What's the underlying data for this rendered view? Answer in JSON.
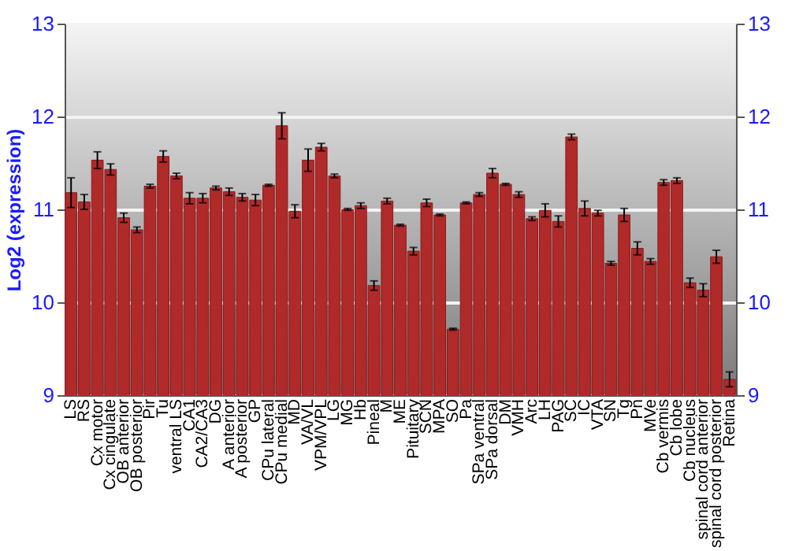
{
  "chart_data": {
    "type": "bar",
    "ylabel": "Log2 (expression)",
    "categories": [
      "LS",
      "RS",
      "Cx motor",
      "Cx cingulate",
      "OB anterior",
      "OB posterior",
      "Pir",
      "Tu",
      "ventral LS",
      "CA1",
      "CA2/CA3",
      "DG",
      "A anterior",
      "A posterior",
      "GP",
      "CPu lateral",
      "CPu medial",
      "MD",
      "VA/VL",
      "VPM/VPL",
      "LG",
      "MG",
      "Hb",
      "Pineal",
      "M",
      "ME",
      "Pituitary",
      "SCN",
      "MPA",
      "SO",
      "Pa",
      "SPa ventral",
      "SPa dorsal",
      "DM",
      "VMH",
      "Arc",
      "LH",
      "PAG",
      "SC",
      "IC",
      "VTA",
      "SN",
      "Tg",
      "Pn",
      "MVe",
      "Cb vermis",
      "Cb lobe",
      "Cb nucleus",
      "spinal cord anterior",
      "spinal cord posterior",
      "Retina"
    ],
    "series": [
      {
        "color": "#b02a2a",
        "values": [
          11.18,
          11.08,
          11.53,
          11.43,
          10.91,
          10.78,
          11.25,
          11.57,
          11.36,
          11.12,
          11.12,
          11.23,
          11.19,
          11.13,
          11.1,
          11.26,
          11.9,
          10.98,
          11.53,
          11.67,
          11.36,
          11.0,
          11.04,
          10.18,
          11.09,
          10.83,
          10.55,
          11.07,
          10.94,
          9.71,
          11.07,
          11.16,
          11.39,
          11.27,
          11.16,
          10.9,
          10.99,
          10.87,
          11.78,
          11.01,
          10.96,
          10.42,
          10.94,
          10.58,
          10.44,
          11.29,
          11.31,
          10.21,
          10.13,
          10.49,
          9.17
        ],
        "errors": [
          0.16,
          0.08,
          0.09,
          0.06,
          0.05,
          0.03,
          0.02,
          0.06,
          0.03,
          0.06,
          0.05,
          0.02,
          0.04,
          0.04,
          0.06,
          0.01,
          0.14,
          0.07,
          0.12,
          0.04,
          0.02,
          0.01,
          0.03,
          0.05,
          0.03,
          0.01,
          0.04,
          0.04,
          0.01,
          0.01,
          0.01,
          0.02,
          0.05,
          0.01,
          0.03,
          0.02,
          0.07,
          0.06,
          0.03,
          0.08,
          0.03,
          0.02,
          0.07,
          0.07,
          0.03,
          0.03,
          0.03,
          0.05,
          0.07,
          0.07,
          0.08
        ]
      }
    ],
    "ylim": [
      9,
      13
    ],
    "yticks": [
      9,
      10,
      11,
      12,
      13
    ],
    "y2lim": [
      9,
      13
    ],
    "y2ticks": [
      9,
      10,
      11,
      12,
      13
    ],
    "grid": "y"
  }
}
